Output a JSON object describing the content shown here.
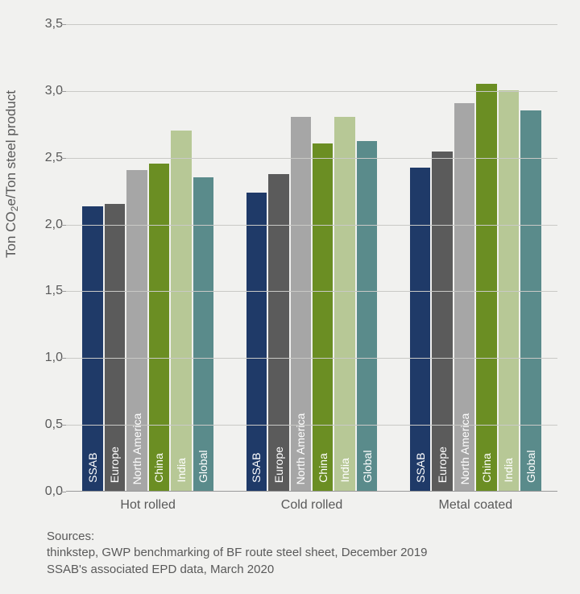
{
  "chart": {
    "type": "bar-grouped",
    "background_color": "#f1f1ef",
    "grid_color": "#c9c9c6",
    "axis_color": "#9a9a9a",
    "text_color": "#595959",
    "y_axis": {
      "title_pre": "Ton CO",
      "title_sub": "2",
      "title_post": "e/Ton steel product",
      "min": 0.0,
      "max": 3.5,
      "ticks": [
        "0,0",
        "0,5",
        "1,0",
        "1,5",
        "2,0",
        "2,5",
        "3,0",
        "3,5"
      ],
      "tick_values": [
        0.0,
        0.5,
        1.0,
        1.5,
        2.0,
        2.5,
        3.0,
        3.5
      ],
      "tick_fontsize": 16,
      "title_fontsize": 17
    },
    "series": [
      {
        "name": "SSAB",
        "color": "#1f3a68"
      },
      {
        "name": "Europe",
        "color": "#5b5b5b"
      },
      {
        "name": "North America",
        "color": "#a6a6a6"
      },
      {
        "name": "China",
        "color": "#6b8e23"
      },
      {
        "name": "India",
        "color": "#b7c896"
      },
      {
        "name": "Global",
        "color": "#5a8b8b"
      }
    ],
    "groups": [
      {
        "label": "Hot rolled",
        "values": [
          2.13,
          2.15,
          2.4,
          2.45,
          2.7,
          2.35
        ]
      },
      {
        "label": "Cold rolled",
        "values": [
          2.23,
          2.37,
          2.8,
          2.6,
          2.8,
          2.62
        ]
      },
      {
        "label": "Metal coated",
        "values": [
          2.42,
          2.54,
          2.9,
          3.05,
          3.0,
          2.85
        ]
      }
    ],
    "bar_label_fontsize": 14,
    "bar_label_color": "#ffffff",
    "x_label_fontsize": 16
  },
  "sources": {
    "heading": "Sources:",
    "line1": "thinkstep, GWP benchmarking of BF route steel sheet, December 2019",
    "line2": "SSAB's associated EPD data, March 2020"
  }
}
